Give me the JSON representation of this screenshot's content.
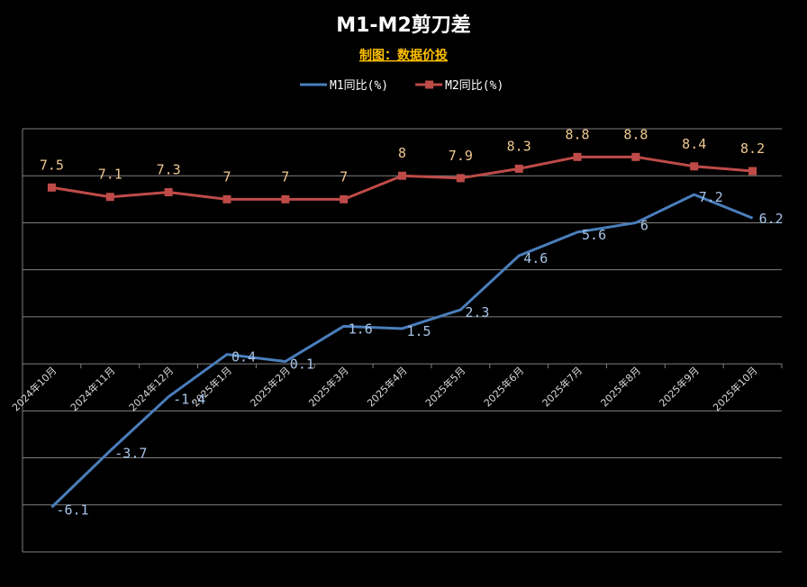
{
  "chart_data": {
    "type": "line",
    "title": "M1-M2剪刀差",
    "subtitle": "制图：数据价投",
    "categories": [
      "2024年10月",
      "2024年11月",
      "2024年12月",
      "2025年1月",
      "2025年2月",
      "2025年3月",
      "2025年4月",
      "2025年5月",
      "2025年6月",
      "2025年7月",
      "2025年8月",
      "2025年9月",
      "2025年10月"
    ],
    "series": [
      {
        "name": "M1同比(%)",
        "color": "#4a7ebb",
        "label_color": "#a8c4e8",
        "marker": "none",
        "values": [
          -6.1,
          -3.7,
          -1.4,
          0.4,
          0.1,
          1.6,
          1.5,
          2.3,
          4.6,
          5.6,
          6,
          7.2,
          6.2
        ],
        "labels": [
          "-6.1",
          "-3.7",
          "-1.4",
          "0.4",
          "0.1",
          "1.6",
          "1.5",
          "2.3",
          "4.6",
          "5.6",
          "6",
          "7.2",
          "6.2"
        ]
      },
      {
        "name": "M2同比(%)",
        "color": "#be4b48",
        "label_color": "#f0c890",
        "marker": "square",
        "values": [
          7.5,
          7.1,
          7.3,
          7,
          7,
          7,
          8,
          7.9,
          8.3,
          8.8,
          8.8,
          8.4,
          8.2
        ],
        "labels": [
          "7.5",
          "7.1",
          "7.3",
          "7",
          "7",
          "7",
          "8",
          "7.9",
          "8.3",
          "8.8",
          "8.8",
          "8.4",
          "8.2"
        ]
      }
    ],
    "ylim": [
      -8,
      10
    ],
    "ytick_step": 2,
    "grid": true,
    "xlabel": "",
    "ylabel": "",
    "legend_position": "top-center",
    "title_color": "#ffffff",
    "subtitle_color": "#ffc000",
    "legend_text_color": "#ffffff",
    "tick_label_color": "#d9d9d9",
    "gridline_color": "#7f7f7f"
  }
}
